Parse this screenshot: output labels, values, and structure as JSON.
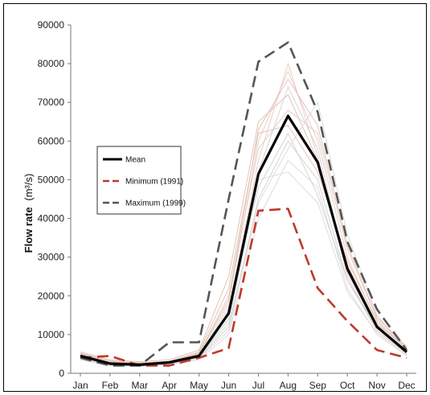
{
  "chart_data": {
    "type": "line",
    "title": "",
    "xlabel": "",
    "ylabel": "Flow rate",
    "ylabel_unit": "(m³/s)",
    "ylim": [
      0,
      90000
    ],
    "yticks": [
      "0",
      "10000",
      "20000",
      "30000",
      "40000",
      "50000",
      "60000",
      "70000",
      "80000",
      "90000"
    ],
    "categories": [
      "Jan",
      "Feb",
      "Mar",
      "Apr",
      "May",
      "Jun",
      "Jul",
      "Aug",
      "Sep",
      "Oct",
      "Nov",
      "Dec"
    ],
    "grid": false,
    "legend_position": "left-middle",
    "series": [
      {
        "name": "Mean",
        "color": "#000000",
        "style": "solid",
        "values": [
          4500,
          2500,
          2200,
          2800,
          4500,
          15500,
          51500,
          66500,
          54500,
          27000,
          12000,
          5500
        ]
      },
      {
        "name": "Minimum (1991)",
        "color": "#c0392b",
        "style": "dashed",
        "values": [
          4000,
          4500,
          2000,
          2000,
          4000,
          6500,
          42000,
          42500,
          22000,
          13500,
          6000,
          4000
        ]
      },
      {
        "name": "Maximum (1999)",
        "color": "#555555",
        "style": "dashed",
        "values": [
          4000,
          2000,
          2000,
          8000,
          8000,
          45000,
          80500,
          85500,
          67500,
          34000,
          16500,
          6000
        ]
      }
    ],
    "background_years": [
      [
        5000,
        3000,
        2500,
        3000,
        5000,
        18000,
        60000,
        78000,
        60000,
        30000,
        13000,
        6000
      ],
      [
        4000,
        2000,
        2000,
        2500,
        4000,
        12000,
        45000,
        60000,
        50000,
        24000,
        11000,
        5000
      ],
      [
        5500,
        3500,
        3000,
        3500,
        6000,
        25000,
        65000,
        72000,
        55000,
        28000,
        12500,
        7000
      ],
      [
        3500,
        2000,
        1800,
        2200,
        3500,
        10000,
        40000,
        55000,
        48000,
        22000,
        10000,
        4500
      ],
      [
        4800,
        2800,
        2400,
        2900,
        5000,
        20000,
        58000,
        68000,
        62000,
        32000,
        14000,
        6500
      ],
      [
        4200,
        2400,
        2100,
        2600,
        4200,
        14000,
        52000,
        74000,
        58000,
        26000,
        11500,
        5200
      ],
      [
        5200,
        3200,
        2700,
        3100,
        5500,
        22000,
        62000,
        64000,
        52000,
        29000,
        13500,
        6200
      ],
      [
        3800,
        2100,
        1900,
        2400,
        3800,
        11000,
        44000,
        58000,
        70000,
        36000,
        15000,
        5800
      ],
      [
        4600,
        2600,
        2300,
        2800,
        4600,
        16000,
        55000,
        80000,
        56000,
        25000,
        11000,
        5000
      ],
      [
        4400,
        2500,
        2200,
        2700,
        4400,
        17000,
        48000,
        62000,
        46000,
        24000,
        12000,
        5600
      ],
      [
        5000,
        2900,
        2600,
        3000,
        5200,
        19000,
        63000,
        76000,
        64000,
        33000,
        14500,
        6800
      ],
      [
        4100,
        2300,
        2000,
        2500,
        4100,
        13000,
        50000,
        52000,
        44000,
        21000,
        10500,
        4800
      ]
    ]
  }
}
